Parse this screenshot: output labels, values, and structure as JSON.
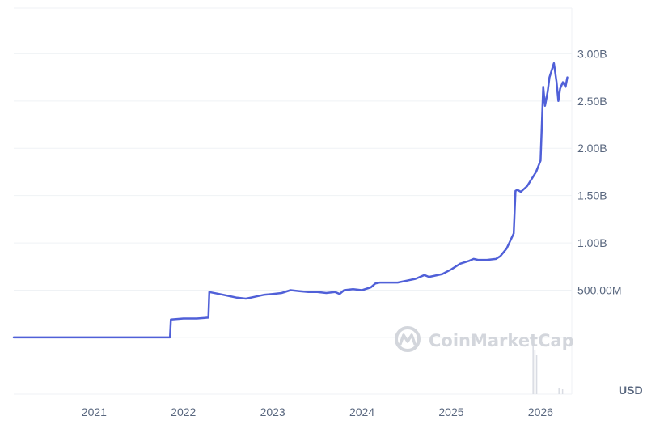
{
  "chart_data": {
    "type": "line",
    "currency_label": "USD",
    "watermark": "CoinMarketCap",
    "x_ticks": [
      "2021",
      "2022",
      "2023",
      "2024",
      "2025",
      "2026"
    ],
    "y_ticks": [
      "500.00M",
      "1.00B",
      "1.50B",
      "2.00B",
      "2.50B",
      "3.00B"
    ],
    "y_tick_values": [
      500000000,
      1000000000,
      1500000000,
      2000000000,
      2500000000,
      3000000000
    ],
    "ylim": [
      -600000000,
      3500000000
    ],
    "xlim": [
      2020.1,
      2026.35
    ],
    "grid": true,
    "colors": {
      "line": "#5060d8",
      "grid": "#eff2f5",
      "axis_text": "#58667e",
      "volume": "#d9dce3"
    },
    "series": [
      {
        "x": [
          2020.1,
          2021.85,
          2021.86,
          2022.0,
          2022.15,
          2022.28,
          2022.29,
          2022.4,
          2022.5,
          2022.6,
          2022.7,
          2022.8,
          2022.9,
          2023.0,
          2023.1,
          2023.2,
          2023.3,
          2023.4,
          2023.5,
          2023.6,
          2023.7,
          2023.75,
          2023.8,
          2023.9,
          2024.0,
          2024.1,
          2024.15,
          2024.2,
          2024.3,
          2024.4,
          2024.5,
          2024.6,
          2024.7,
          2024.75,
          2024.8,
          2024.9,
          2025.0,
          2025.05,
          2025.1,
          2025.2,
          2025.25,
          2025.3,
          2025.4,
          2025.5,
          2025.55,
          2025.62,
          2025.65,
          2025.7,
          2025.72,
          2025.74,
          2025.78,
          2025.85,
          2025.95,
          2026.0,
          2026.03,
          2026.05,
          2026.08,
          2026.1,
          2026.15,
          2026.18,
          2026.2,
          2026.22,
          2026.25,
          2026.28,
          2026.3
        ],
        "y": [
          0,
          0,
          190000000,
          200000000,
          200000000,
          210000000,
          480000000,
          460000000,
          440000000,
          420000000,
          410000000,
          430000000,
          450000000,
          460000000,
          470000000,
          500000000,
          490000000,
          480000000,
          480000000,
          470000000,
          480000000,
          460000000,
          500000000,
          510000000,
          500000000,
          530000000,
          570000000,
          580000000,
          580000000,
          580000000,
          600000000,
          620000000,
          660000000,
          640000000,
          650000000,
          670000000,
          720000000,
          750000000,
          780000000,
          810000000,
          830000000,
          820000000,
          820000000,
          830000000,
          860000000,
          940000000,
          1000000000,
          1100000000,
          1550000000,
          1560000000,
          1540000000,
          1600000000,
          1750000000,
          1870000000,
          2650000000,
          2450000000,
          2600000000,
          2750000000,
          2900000000,
          2700000000,
          2500000000,
          2630000000,
          2700000000,
          2650000000,
          2750000000
        ]
      }
    ]
  }
}
